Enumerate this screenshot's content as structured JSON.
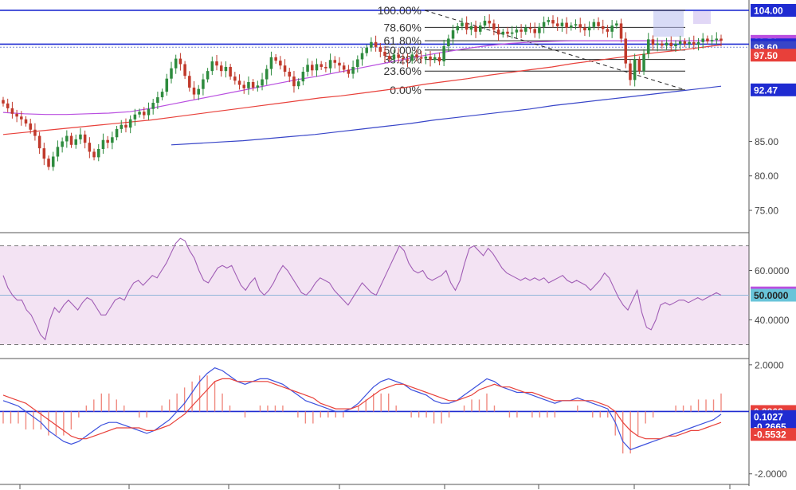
{
  "colors": {
    "up_candle": "#2e8b3e",
    "down_candle": "#c0392b",
    "ma_red": "#e8403a",
    "ma_purple": "#b94fe0",
    "ma_blue": "#3845c8",
    "hline_blue": "#1f2bd1",
    "rsi_line": "#a05db5",
    "rsi_band": "#f3e3f3",
    "macd_line": "#3c50dd",
    "signal_line": "#e8403a",
    "hist": "#f08a80"
  },
  "chart_data": [
    {
      "type": "candlestick",
      "panel": "price",
      "ylim": [
        72,
        105.5
      ],
      "y_ticks": [
        {
          "value": 104.0,
          "label": "104.00",
          "badge": true,
          "bg": "#1f2bd1",
          "fg": "#ffffff"
        },
        {
          "value": 99.51,
          "label": "99.51",
          "badge": true,
          "bg": "#b94fe0",
          "fg": "#ffffff"
        },
        {
          "value": 99.0,
          "label": "99.00",
          "badge": true,
          "bg": "#1f2bd1",
          "fg": "#ffffff"
        },
        {
          "value": 98.6,
          "label": "98.60",
          "badge": true,
          "bg": "#3845c8",
          "fg": "#ffffff"
        },
        {
          "value": 97.5,
          "label": "97.50",
          "badge": true,
          "bg": "#e8403a",
          "fg": "#ffffff"
        },
        {
          "value": 92.47,
          "label": "92.47",
          "badge": true,
          "bg": "#1f2bd1",
          "fg": "#ffffff"
        },
        {
          "value": 85.0,
          "label": "85.00",
          "badge": false
        },
        {
          "value": 80.0,
          "label": "80.00",
          "badge": false
        },
        {
          "value": 75.0,
          "label": "75.00",
          "badge": false
        }
      ],
      "horizontal_lines": [
        104.0,
        99.1
      ],
      "fibonacci": {
        "high": 104.0,
        "low": 92.47,
        "levels": [
          {
            "ratio": 1.0,
            "label": "100.00%"
          },
          {
            "ratio": 0.786,
            "label": "78.60%"
          },
          {
            "ratio": 0.618,
            "label": "61.80%"
          },
          {
            "ratio": 0.5,
            "label": "50.00%"
          },
          {
            "ratio": 0.382,
            "label": "38.20%"
          },
          {
            "ratio": 0.236,
            "label": "23.60%"
          },
          {
            "ratio": 0.0,
            "label": "0.00%"
          }
        ]
      },
      "closes": [
        90.5,
        89.8,
        89.0,
        88.6,
        88.2,
        87.6,
        86.7,
        85.8,
        84.0,
        82.5,
        81.3,
        82.8,
        84.2,
        85.0,
        85.8,
        84.5,
        85.3,
        86.0,
        84.8,
        83.5,
        82.7,
        83.9,
        85.2,
        84.8,
        85.6,
        86.8,
        87.4,
        87.0,
        88.2,
        88.9,
        89.3,
        88.8,
        89.7,
        90.6,
        91.4,
        92.2,
        94.1,
        95.6,
        97.0,
        96.2,
        94.5,
        92.8,
        91.8,
        92.6,
        94.0,
        95.2,
        96.6,
        96.0,
        95.2,
        95.8,
        94.4,
        93.8,
        93.2,
        92.7,
        93.6,
        92.8,
        93.1,
        94.0,
        95.5,
        97.2,
        96.7,
        96.0,
        95.1,
        94.4,
        93.0,
        93.7,
        95.1,
        96.1,
        95.3,
        96.2,
        95.8,
        95.6,
        96.8,
        96.4,
        96.0,
        95.4,
        94.8,
        95.8,
        96.9,
        97.8,
        98.6,
        99.4,
        98.7,
        98.0,
        97.4,
        96.9,
        97.6,
        97.1,
        96.9,
        96.7,
        97.6,
        97.2,
        97.0,
        97.3,
        96.8,
        97.2,
        96.6,
        98.8,
        99.9,
        101.1,
        101.7,
        102.2,
        101.2,
        101.7,
        100.9,
        101.8,
        102.5,
        102.1,
        101.2,
        100.5,
        100.9,
        100.6,
        100.8,
        101.2,
        100.9,
        101.5,
        101.3,
        100.7,
        101.6,
        102.3,
        102.6,
        102.1,
        101.7,
        102.2,
        101.5,
        101.8,
        102.0,
        101.5,
        101.1,
        101.6,
        102.3,
        101.7,
        101.3,
        100.9,
        101.8,
        102.1,
        99.9,
        96.3,
        93.9,
        96.9,
        95.2,
        97.7,
        99.8,
        99.0,
        99.2,
        98.9,
        99.3,
        98.8,
        99.1,
        99.5,
        99.1,
        99.4,
        99.0,
        99.4,
        99.9,
        99.5,
        99.7,
        99.9,
        99.6
      ],
      "ma_red": [
        86.0,
        86.3,
        86.6,
        86.9,
        87.2,
        87.5,
        87.8,
        88.1,
        88.5,
        88.9,
        89.3,
        89.7,
        90.1,
        90.5,
        90.9,
        91.3,
        91.6,
        92.0,
        92.4,
        92.8,
        93.3,
        93.7,
        94.1,
        94.6,
        95.0,
        95.4,
        95.8,
        96.3,
        96.7,
        97.1,
        97.5,
        97.9,
        98.2,
        98.6,
        99.0
      ],
      "ma_purple": [
        89.2,
        89.0,
        88.9,
        88.9,
        89.0,
        89.1,
        89.3,
        89.8,
        90.4,
        91.0,
        91.6,
        92.2,
        92.8,
        93.4,
        94.0,
        94.5,
        95.1,
        95.7,
        96.3,
        96.9,
        97.5,
        98.0,
        98.5,
        98.9,
        99.2,
        99.4,
        99.5,
        99.6,
        99.6,
        99.6,
        99.6,
        99.6,
        99.6,
        99.6,
        99.6
      ],
      "ma_blue": [
        84.5,
        84.7,
        84.9,
        85.1,
        85.4,
        85.7,
        86.0,
        86.4,
        86.8,
        87.2,
        87.6,
        88.1,
        88.5,
        88.9,
        89.3,
        89.7,
        90.2,
        90.6,
        91.0,
        91.4,
        91.8,
        92.2,
        92.6,
        93.0
      ],
      "ma_blue_start_index": 37
    },
    {
      "type": "line",
      "panel": "rsi",
      "ylim": [
        25,
        75
      ],
      "band": [
        30,
        70
      ],
      "y_ticks": [
        {
          "value": 60,
          "label": "60.0000",
          "badge": false
        },
        {
          "value": 50.913,
          "label": "50.9130",
          "badge": true,
          "bg": "#b94fe0",
          "fg": "#ffffff"
        },
        {
          "value": 50.0,
          "label": "50.0000",
          "badge": true,
          "bg": "#69c4d9",
          "fg": "#222222"
        },
        {
          "value": 40,
          "label": "40.0000",
          "badge": false
        }
      ],
      "midline": 50,
      "values": [
        58,
        53,
        50,
        48,
        48,
        44,
        42,
        38,
        34,
        32,
        40,
        45,
        43,
        46,
        48,
        46,
        44,
        47,
        49,
        48,
        45,
        42,
        42,
        45,
        48,
        49,
        48,
        52,
        55,
        56,
        54,
        56,
        58,
        57,
        60,
        63,
        67,
        71,
        73,
        72,
        68,
        65,
        60,
        56,
        55,
        58,
        61,
        62,
        61,
        62,
        58,
        54,
        52,
        55,
        57,
        52,
        50,
        52,
        55,
        59,
        62,
        60,
        57,
        54,
        51,
        50,
        52,
        55,
        57,
        56,
        55,
        52,
        50,
        48,
        46,
        49,
        52,
        55,
        53,
        51,
        50,
        54,
        58,
        62,
        66,
        70,
        68,
        63,
        60,
        59,
        60,
        57,
        56,
        57,
        58,
        60,
        55,
        52,
        56,
        63,
        69,
        70,
        68,
        66,
        69,
        67,
        64,
        61,
        59,
        58,
        57,
        56,
        57,
        56,
        57,
        56,
        57,
        55,
        56,
        57,
        58,
        56,
        55,
        56,
        55,
        54,
        52,
        54,
        56,
        59,
        57,
        53,
        49,
        46,
        44,
        48,
        52,
        43,
        37,
        36,
        40,
        46,
        47,
        46,
        47,
        48,
        48,
        47,
        48,
        49,
        48,
        49,
        50,
        51,
        50
      ],
      "line_name": ""
    },
    {
      "type": "line+histogram",
      "panel": "macd",
      "ylim": [
        -2.3,
        2.2
      ],
      "zero_line": 0.2868,
      "y_ticks": [
        {
          "value": 2.0,
          "label": "2.0000",
          "badge": false
        },
        {
          "value": 0.2868,
          "label": "0.2868",
          "badge": true,
          "bg": "#e8403a",
          "fg": "#ffffff"
        },
        {
          "value": 0.1027,
          "label": "0.1027",
          "badge": true,
          "bg": "#1f2bd1",
          "fg": "#ffffff"
        },
        {
          "value": -0.2665,
          "label": "-0.2665",
          "badge": true,
          "bg": "#1f2bd1",
          "fg": "#ffffff"
        },
        {
          "value": -0.5532,
          "label": "-0.5532",
          "badge": true,
          "bg": "#e8403a",
          "fg": "#ffffff"
        },
        {
          "value": -2.0,
          "label": "-2.0000",
          "badge": false
        }
      ],
      "macd": [
        0.6,
        0.5,
        0.4,
        0.2,
        0.0,
        -0.2,
        -0.5,
        -0.7,
        -0.9,
        -1.0,
        -0.9,
        -0.7,
        -0.5,
        -0.3,
        -0.2,
        -0.2,
        -0.3,
        -0.4,
        -0.5,
        -0.6,
        -0.5,
        -0.3,
        -0.1,
        0.2,
        0.5,
        0.9,
        1.3,
        1.6,
        1.8,
        1.7,
        1.5,
        1.3,
        1.2,
        1.3,
        1.4,
        1.4,
        1.3,
        1.2,
        1.0,
        0.8,
        0.6,
        0.5,
        0.4,
        0.3,
        0.2,
        0.2,
        0.3,
        0.5,
        0.8,
        1.1,
        1.3,
        1.4,
        1.3,
        1.2,
        1.0,
        0.9,
        0.8,
        0.6,
        0.5,
        0.5,
        0.6,
        0.8,
        1.0,
        1.2,
        1.4,
        1.3,
        1.1,
        1.0,
        0.9,
        0.9,
        0.8,
        0.7,
        0.6,
        0.5,
        0.6,
        0.6,
        0.7,
        0.6,
        0.5,
        0.4,
        0.3,
        -0.2,
        -0.9,
        -1.2,
        -1.1,
        -1.0,
        -0.9,
        -0.8,
        -0.7,
        -0.6,
        -0.5,
        -0.4,
        -0.3,
        -0.2,
        -0.1,
        0.1
      ],
      "signal": [
        0.8,
        0.7,
        0.6,
        0.5,
        0.3,
        0.1,
        -0.1,
        -0.3,
        -0.5,
        -0.7,
        -0.8,
        -0.8,
        -0.7,
        -0.6,
        -0.5,
        -0.4,
        -0.4,
        -0.4,
        -0.4,
        -0.5,
        -0.5,
        -0.4,
        -0.3,
        -0.1,
        0.1,
        0.4,
        0.7,
        1.0,
        1.3,
        1.4,
        1.4,
        1.3,
        1.3,
        1.3,
        1.3,
        1.3,
        1.2,
        1.1,
        1.0,
        0.9,
        0.8,
        0.7,
        0.5,
        0.4,
        0.3,
        0.3,
        0.3,
        0.4,
        0.6,
        0.8,
        1.0,
        1.1,
        1.2,
        1.2,
        1.1,
        1.0,
        0.9,
        0.8,
        0.7,
        0.6,
        0.6,
        0.7,
        0.8,
        1.0,
        1.1,
        1.2,
        1.1,
        1.1,
        1.0,
        0.9,
        0.9,
        0.8,
        0.7,
        0.6,
        0.6,
        0.6,
        0.6,
        0.6,
        0.6,
        0.5,
        0.4,
        0.2,
        -0.2,
        -0.5,
        -0.7,
        -0.8,
        -0.8,
        -0.8,
        -0.7,
        -0.7,
        -0.6,
        -0.5,
        -0.5,
        -0.4,
        -0.3,
        -0.2
      ]
    }
  ]
}
